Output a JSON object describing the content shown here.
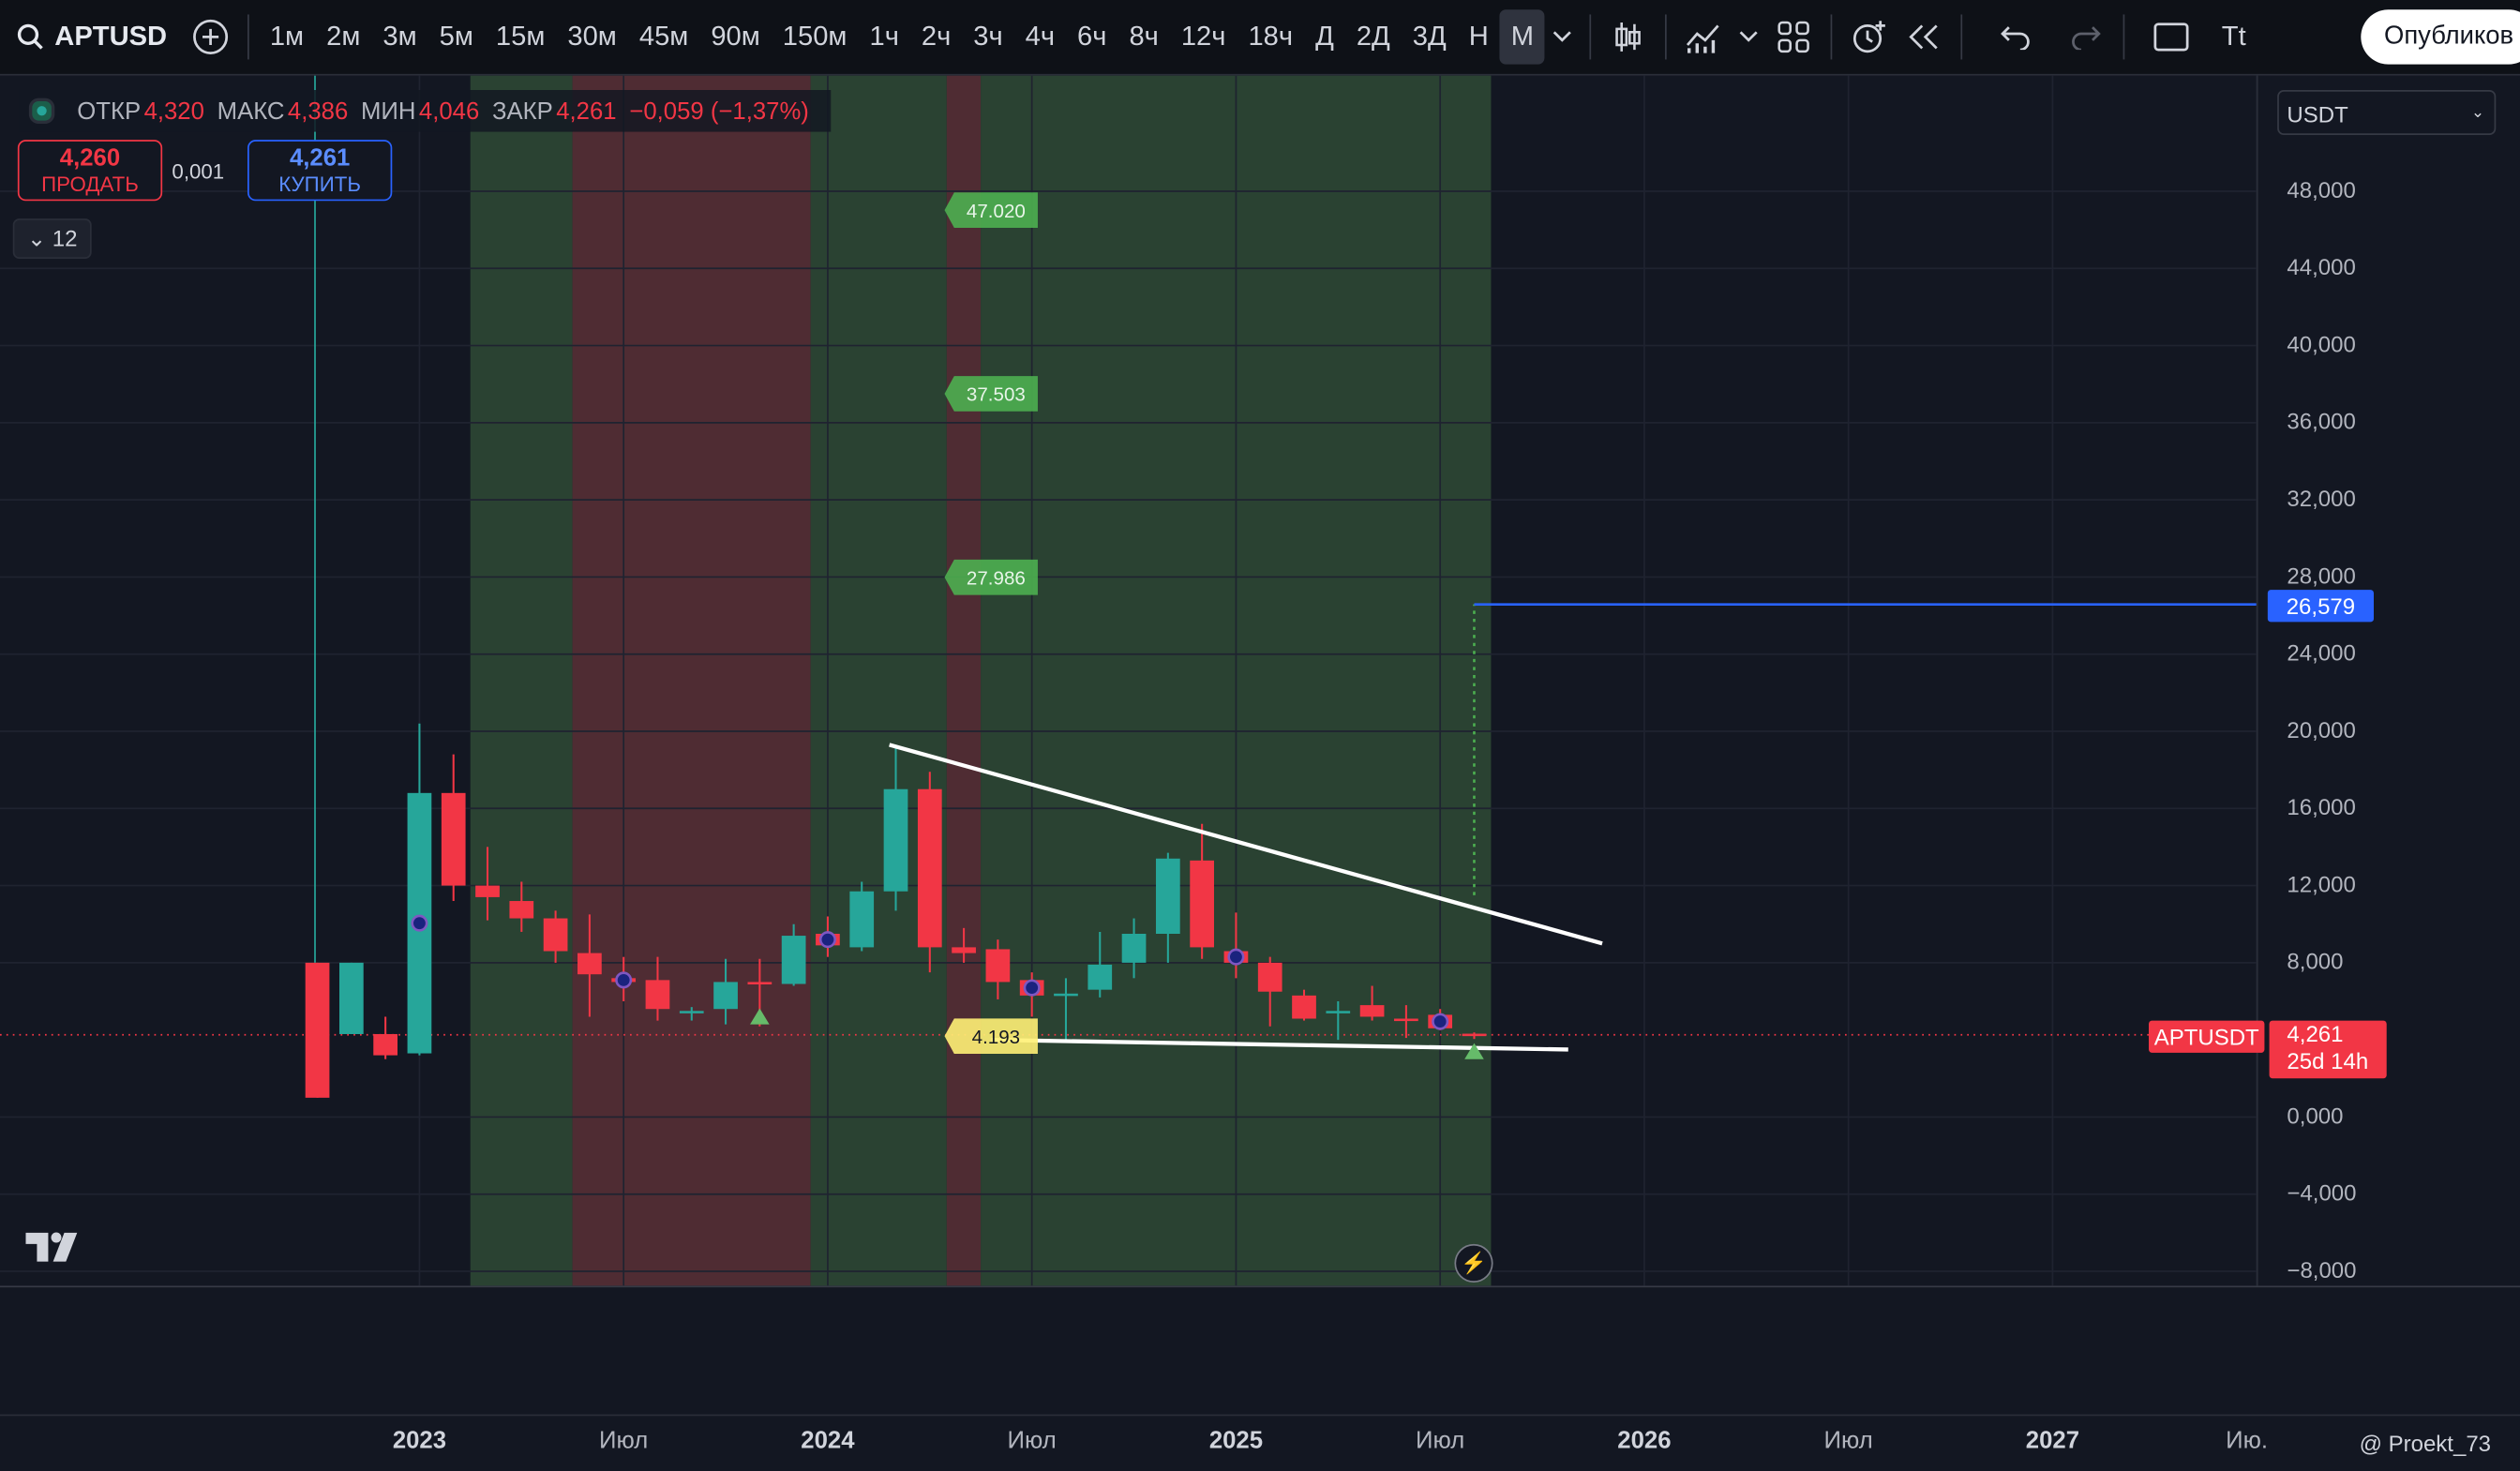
{
  "toolbar": {
    "symbol": "APTUSD",
    "timeframes": [
      "1м",
      "2м",
      "3м",
      "5м",
      "15м",
      "30м",
      "45м",
      "90м",
      "150м",
      "1ч",
      "2ч",
      "3ч",
      "4ч",
      "6ч",
      "8ч",
      "12ч",
      "18ч",
      "Д",
      "2Д",
      "3Д",
      "Н",
      "М"
    ],
    "active_timeframe": "М",
    "cut_label": "Tt",
    "publish_label": "Опубликов"
  },
  "legend": {
    "open_label": "ОТКР",
    "open": "4,320",
    "high_label": "МАКС",
    "high": "4,386",
    "low_label": "МИН",
    "low": "4,046",
    "close_label": "ЗАКР",
    "close": "4,261",
    "change": "−0,059 (−1,37%)"
  },
  "trade": {
    "sell_price": "4,260",
    "sell_label": "ПРОДАТЬ",
    "spread": "0,001",
    "buy_price": "4,261",
    "buy_label": "КУПИТЬ"
  },
  "indicators_count": "12",
  "currency": "USDT",
  "last_price": {
    "symbol": "APTUSDT",
    "price": "4,261",
    "countdown": "25d 14h"
  },
  "target_price": "26,579",
  "author": "@ Proekt_73",
  "colors": {
    "up": "#26a69a",
    "down": "#f23645",
    "bg": "#131722",
    "green_zone": "#2f4a35",
    "red_zone": "#5b3036",
    "target": "#2962ff",
    "fib": "#4caf50",
    "support_label": "#fff176"
  },
  "chart_data": {
    "type": "candlestick",
    "title": "APTUSD",
    "ylim": [
      -8,
      50
    ],
    "y_ticks": [
      48,
      44,
      40,
      36,
      32,
      28,
      24,
      20,
      16,
      12,
      8,
      0,
      -4,
      -8
    ],
    "y_tick_labels": [
      "48,000",
      "44,000",
      "40,000",
      "36,000",
      "32,000",
      "28,000",
      "24,000",
      "20,000",
      "16,000",
      "12,000",
      "8,000",
      "0,000",
      "−4,000",
      "−8,000"
    ],
    "x_labels": [
      "2023",
      "Июл",
      "2024",
      "Июл",
      "2025",
      "Июл",
      "2026",
      "Июл",
      "2027",
      "Ию."
    ],
    "x_label_dates": [
      "2023-01",
      "2023-07",
      "2024-01",
      "2024-07",
      "2025-01",
      "2025-07",
      "2026-01",
      "2026-07",
      "2027-01",
      "2027-07"
    ],
    "candles": [
      {
        "date": "2022-10",
        "o": 8.0,
        "h": 8.0,
        "l": 1.0,
        "c": 1.0
      },
      {
        "date": "2022-11",
        "o": 4.3,
        "h": 8.0,
        "l": 4.3,
        "c": 8.0
      },
      {
        "date": "2022-12",
        "o": 4.3,
        "h": 5.2,
        "l": 3.0,
        "c": 3.2
      },
      {
        "date": "2023-01",
        "o": 3.3,
        "h": 20.4,
        "l": 3.2,
        "c": 16.8
      },
      {
        "date": "2023-02",
        "o": 16.8,
        "h": 18.8,
        "l": 11.2,
        "c": 12.0
      },
      {
        "date": "2023-03",
        "o": 12.0,
        "h": 14.0,
        "l": 10.2,
        "c": 11.4
      },
      {
        "date": "2023-04",
        "o": 11.2,
        "h": 12.2,
        "l": 9.6,
        "c": 10.3
      },
      {
        "date": "2023-05",
        "o": 10.3,
        "h": 10.7,
        "l": 8.0,
        "c": 8.6
      },
      {
        "date": "2023-06",
        "o": 8.5,
        "h": 10.5,
        "l": 5.2,
        "c": 7.4
      },
      {
        "date": "2023-07",
        "o": 7.2,
        "h": 8.3,
        "l": 6.0,
        "c": 7.0
      },
      {
        "date": "2023-08",
        "o": 7.1,
        "h": 8.3,
        "l": 5.0,
        "c": 5.6
      },
      {
        "date": "2023-09",
        "o": 5.4,
        "h": 5.7,
        "l": 5.0,
        "c": 5.5
      },
      {
        "date": "2023-10",
        "o": 5.6,
        "h": 8.2,
        "l": 4.8,
        "c": 7.0
      },
      {
        "date": "2023-11",
        "o": 7.0,
        "h": 8.2,
        "l": 4.7,
        "c": 6.9
      },
      {
        "date": "2023-12",
        "o": 6.9,
        "h": 10.0,
        "l": 6.8,
        "c": 9.4
      },
      {
        "date": "2024-01",
        "o": 9.5,
        "h": 10.4,
        "l": 8.3,
        "c": 8.9
      },
      {
        "date": "2024-02",
        "o": 8.8,
        "h": 12.2,
        "l": 8.6,
        "c": 11.7
      },
      {
        "date": "2024-03",
        "o": 11.7,
        "h": 19.3,
        "l": 10.7,
        "c": 17.0
      },
      {
        "date": "2024-04",
        "o": 17.0,
        "h": 17.9,
        "l": 7.5,
        "c": 8.8
      },
      {
        "date": "2024-05",
        "o": 8.8,
        "h": 9.8,
        "l": 8.0,
        "c": 8.5
      },
      {
        "date": "2024-06",
        "o": 8.7,
        "h": 9.2,
        "l": 6.1,
        "c": 7.0
      },
      {
        "date": "2024-07",
        "o": 7.1,
        "h": 7.5,
        "l": 5.2,
        "c": 6.3
      },
      {
        "date": "2024-08",
        "o": 6.3,
        "h": 7.2,
        "l": 4.0,
        "c": 6.4
      },
      {
        "date": "2024-09",
        "o": 6.6,
        "h": 9.6,
        "l": 6.2,
        "c": 7.9
      },
      {
        "date": "2024-10",
        "o": 8.0,
        "h": 10.3,
        "l": 7.2,
        "c": 9.5
      },
      {
        "date": "2024-11",
        "o": 9.5,
        "h": 13.7,
        "l": 8.0,
        "c": 13.4
      },
      {
        "date": "2024-12",
        "o": 13.3,
        "h": 15.2,
        "l": 8.2,
        "c": 8.8
      },
      {
        "date": "2025-01",
        "o": 8.6,
        "h": 10.6,
        "l": 7.2,
        "c": 8.0
      },
      {
        "date": "2025-02",
        "o": 8.0,
        "h": 8.3,
        "l": 4.7,
        "c": 6.5
      },
      {
        "date": "2025-03",
        "o": 6.3,
        "h": 6.6,
        "l": 5.0,
        "c": 5.1
      },
      {
        "date": "2025-04",
        "o": 5.5,
        "h": 6.0,
        "l": 4.0,
        "c": 5.5
      },
      {
        "date": "2025-05",
        "o": 5.8,
        "h": 6.8,
        "l": 5.0,
        "c": 5.2
      },
      {
        "date": "2025-06",
        "o": 5.1,
        "h": 5.8,
        "l": 4.1,
        "c": 5.0
      },
      {
        "date": "2025-07",
        "o": 5.3,
        "h": 5.6,
        "l": 4.5,
        "c": 4.6
      },
      {
        "date": "2025-08",
        "o": 4.32,
        "h": 4.386,
        "l": 4.046,
        "c": 4.261
      }
    ],
    "zones": [
      {
        "from": "2023-02",
        "to": "2023-05",
        "color": "green"
      },
      {
        "from": "2023-05",
        "to": "2023-12",
        "color": "red"
      },
      {
        "from": "2023-12",
        "to": "2024-04",
        "color": "green"
      },
      {
        "from": "2024-04",
        "to": "2024-05",
        "color": "red"
      },
      {
        "from": "2024-05",
        "to": "2025-08",
        "color": "green"
      }
    ],
    "fib_labels": [
      {
        "text": "47.020",
        "date": "2024-05",
        "y": 47.02
      },
      {
        "text": "37.503",
        "date": "2024-05",
        "y": 37.503
      },
      {
        "text": "27.986",
        "date": "2024-05",
        "y": 27.986
      },
      {
        "text": "4.193",
        "date": "2024-05",
        "y": 4.193
      }
    ],
    "trendlines": [
      {
        "from": {
          "date": "2024-03",
          "y": 19.3
        },
        "to": {
          "date": "2025-12",
          "y": 9.0
        },
        "color": "#ffffff"
      },
      {
        "from": {
          "date": "2024-06",
          "y": 4.0
        },
        "to": {
          "date": "2025-11",
          "y": 3.5
        },
        "color": "#ffffff"
      }
    ],
    "target": {
      "date": "2025-08",
      "y_from": 11.5,
      "y_to": 26.579,
      "label": "26,579"
    },
    "current_price": 4.261
  }
}
